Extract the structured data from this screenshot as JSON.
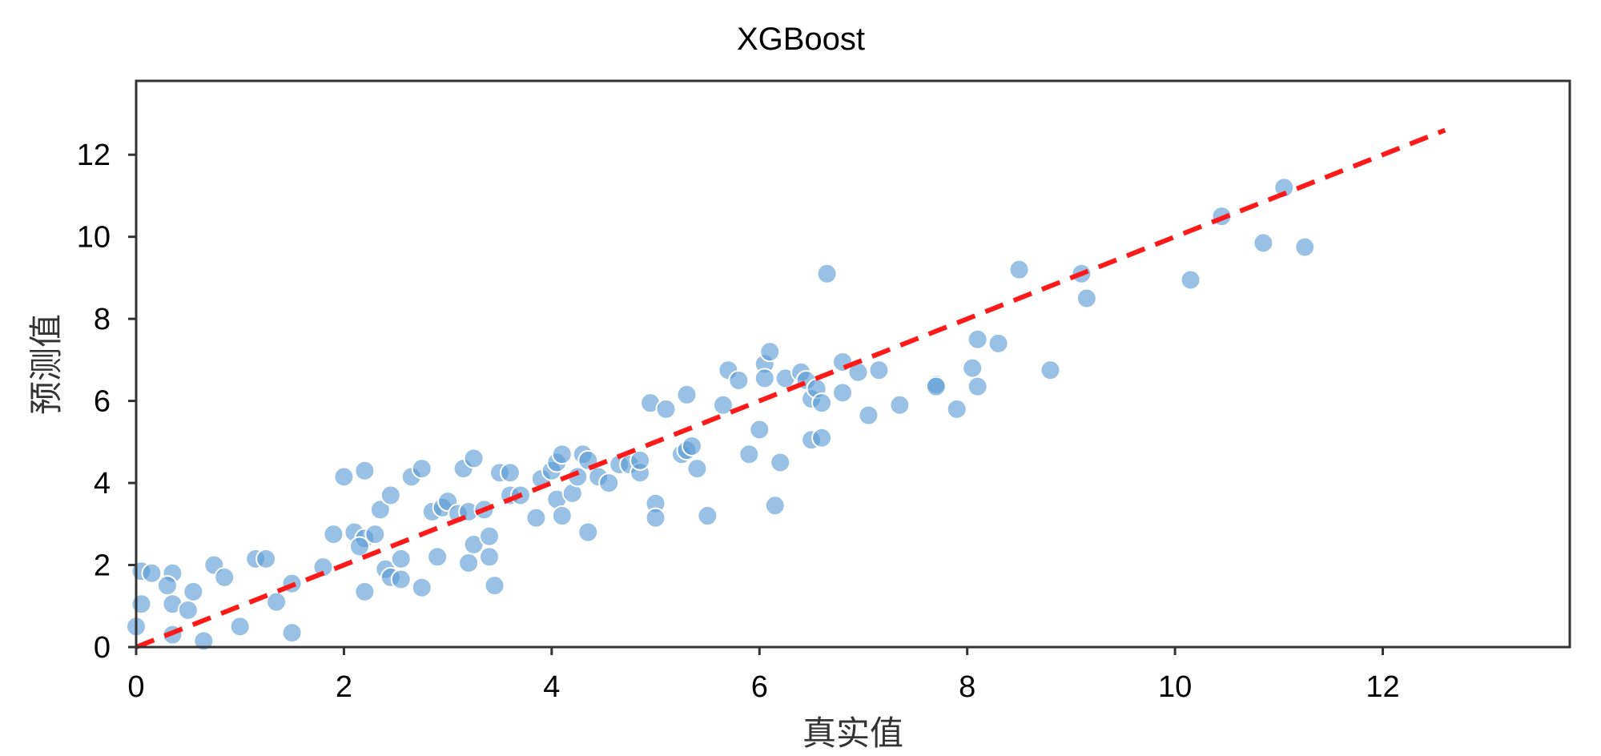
{
  "chart_data": {
    "type": "scatter",
    "title": "XGBoost",
    "xlabel": "真实值",
    "ylabel": "预测值",
    "xlim": [
      0,
      13.8
    ],
    "ylim": [
      0,
      13.8
    ],
    "xticks": [
      0,
      2,
      4,
      6,
      8,
      10,
      12
    ],
    "yticks": [
      0,
      2,
      4,
      6,
      8,
      10,
      12
    ],
    "grid": false,
    "point_color": "#5b9bd5",
    "reference_line": {
      "style": "dashed",
      "color": "#ff1a1a",
      "from": [
        0,
        0
      ],
      "to": [
        12.6,
        12.6
      ]
    },
    "points": [
      [
        0.05,
        1.85
      ],
      [
        0.15,
        1.8
      ],
      [
        0.35,
        1.8
      ],
      [
        0.3,
        1.5
      ],
      [
        0.05,
        1.05
      ],
      [
        0.35,
        1.05
      ],
      [
        0.5,
        0.9
      ],
      [
        0.55,
        1.35
      ],
      [
        0.0,
        0.5
      ],
      [
        0.35,
        0.3
      ],
      [
        0.65,
        0.15
      ],
      [
        0.75,
        2.0
      ],
      [
        0.85,
        1.7
      ],
      [
        1.0,
        0.5
      ],
      [
        1.15,
        2.15
      ],
      [
        1.25,
        2.15
      ],
      [
        1.35,
        1.1
      ],
      [
        1.5,
        1.55
      ],
      [
        1.5,
        0.35
      ],
      [
        1.8,
        1.95
      ],
      [
        1.9,
        2.75
      ],
      [
        2.0,
        4.15
      ],
      [
        2.2,
        4.3
      ],
      [
        2.1,
        2.8
      ],
      [
        2.2,
        2.65
      ],
      [
        2.15,
        2.45
      ],
      [
        2.2,
        1.35
      ],
      [
        2.3,
        2.75
      ],
      [
        2.35,
        3.35
      ],
      [
        2.45,
        3.7
      ],
      [
        2.4,
        1.9
      ],
      [
        2.45,
        1.7
      ],
      [
        2.55,
        2.15
      ],
      [
        2.55,
        1.65
      ],
      [
        2.65,
        4.15
      ],
      [
        2.75,
        4.35
      ],
      [
        2.75,
        1.45
      ],
      [
        2.85,
        3.3
      ],
      [
        2.9,
        2.2
      ],
      [
        2.95,
        3.4
      ],
      [
        3.0,
        3.55
      ],
      [
        3.1,
        3.25
      ],
      [
        3.15,
        4.35
      ],
      [
        3.2,
        3.3
      ],
      [
        3.2,
        2.05
      ],
      [
        3.25,
        4.6
      ],
      [
        3.25,
        2.5
      ],
      [
        3.35,
        3.35
      ],
      [
        3.4,
        2.7
      ],
      [
        3.4,
        2.2
      ],
      [
        3.45,
        1.5
      ],
      [
        3.5,
        4.25
      ],
      [
        3.6,
        4.25
      ],
      [
        3.6,
        3.7
      ],
      [
        3.7,
        3.7
      ],
      [
        3.85,
        3.15
      ],
      [
        3.9,
        4.1
      ],
      [
        4.0,
        4.3
      ],
      [
        4.05,
        4.5
      ],
      [
        4.05,
        3.6
      ],
      [
        4.1,
        3.2
      ],
      [
        4.1,
        4.7
      ],
      [
        4.2,
        3.75
      ],
      [
        4.25,
        4.15
      ],
      [
        4.3,
        4.7
      ],
      [
        4.35,
        4.55
      ],
      [
        4.35,
        2.8
      ],
      [
        4.45,
        4.15
      ],
      [
        4.55,
        4.0
      ],
      [
        4.65,
        4.45
      ],
      [
        4.75,
        4.45
      ],
      [
        4.85,
        4.25
      ],
      [
        4.85,
        4.55
      ],
      [
        4.95,
        5.95
      ],
      [
        5.0,
        3.5
      ],
      [
        5.0,
        3.15
      ],
      [
        5.1,
        5.8
      ],
      [
        5.25,
        4.7
      ],
      [
        5.3,
        4.8
      ],
      [
        5.3,
        6.15
      ],
      [
        5.35,
        4.9
      ],
      [
        5.4,
        4.35
      ],
      [
        5.5,
        3.2
      ],
      [
        5.65,
        5.9
      ],
      [
        5.7,
        6.75
      ],
      [
        5.8,
        6.5
      ],
      [
        5.9,
        4.7
      ],
      [
        6.0,
        5.3
      ],
      [
        6.05,
        6.9
      ],
      [
        6.05,
        6.55
      ],
      [
        6.1,
        7.2
      ],
      [
        6.15,
        3.45
      ],
      [
        6.2,
        4.5
      ],
      [
        6.25,
        6.55
      ],
      [
        6.4,
        6.7
      ],
      [
        6.45,
        6.5
      ],
      [
        6.5,
        6.05
      ],
      [
        6.5,
        5.05
      ],
      [
        6.55,
        6.3
      ],
      [
        6.6,
        5.95
      ],
      [
        6.6,
        5.1
      ],
      [
        6.65,
        9.1
      ],
      [
        6.8,
        6.95
      ],
      [
        6.8,
        6.2
      ],
      [
        6.95,
        6.7
      ],
      [
        7.05,
        5.65
      ],
      [
        7.15,
        6.75
      ],
      [
        7.35,
        5.9
      ],
      [
        7.7,
        6.4
      ],
      [
        7.7,
        6.35
      ],
      [
        7.9,
        5.8
      ],
      [
        8.05,
        6.8
      ],
      [
        8.1,
        7.5
      ],
      [
        8.1,
        6.35
      ],
      [
        8.3,
        7.4
      ],
      [
        8.5,
        9.2
      ],
      [
        8.8,
        6.75
      ],
      [
        9.1,
        9.1
      ],
      [
        9.15,
        8.5
      ],
      [
        10.15,
        8.95
      ],
      [
        10.45,
        10.5
      ],
      [
        10.85,
        9.85
      ],
      [
        11.05,
        11.2
      ],
      [
        11.25,
        9.75
      ]
    ]
  }
}
